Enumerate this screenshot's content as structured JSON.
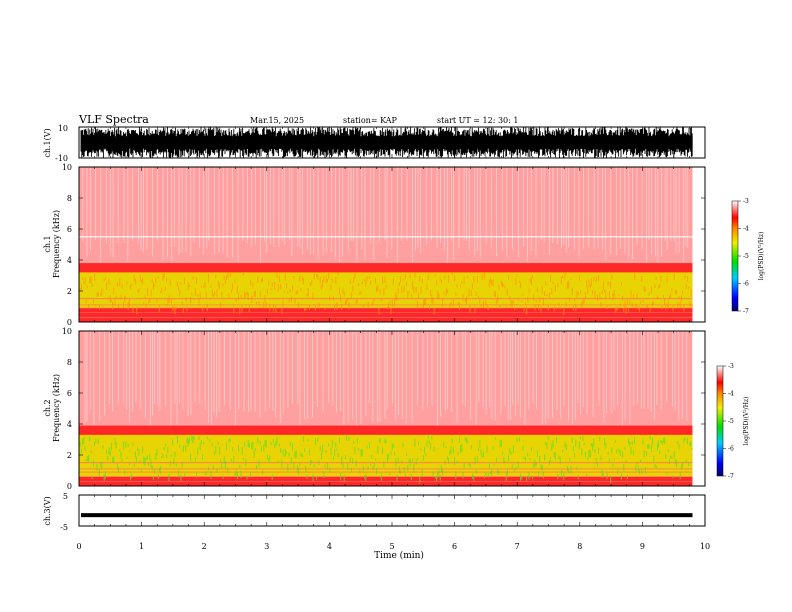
{
  "header": {
    "title": "VLF Spectra",
    "date": "Mar.15, 2025",
    "station": "station= KAP",
    "start": "start  UT =   12: 30: 1"
  },
  "colors": {
    "background": "#ffffff",
    "trace": "#000000",
    "spectrum_high": "#ff0000",
    "spectrum_low": "#ffffff",
    "band_yellow": "#e6e600",
    "band_green": "#66dd22"
  },
  "chart_data": [
    {
      "id": "ch1-waveform",
      "type": "line",
      "ylabel": "ch.1(V)",
      "ylim": [
        -10,
        10
      ],
      "y_ticks": [
        "10",
        "-10"
      ],
      "x_range_min": [
        0,
        9.8
      ],
      "description_series": "noise waveform filling most of the range"
    },
    {
      "id": "ch1-spectrogram",
      "type": "heatmap",
      "ylabel": "ch.1\nFrequency (kHz)",
      "ylim": [
        0,
        10
      ],
      "y_ticks": [
        "0",
        "2",
        "4",
        "6",
        "8",
        "10"
      ],
      "xlim": [
        0,
        10
      ],
      "data_end_min": 9.8,
      "colorbar": {
        "label": "log(PSD)(V²/Hz)",
        "range": [
          -7,
          -3
        ],
        "ticks": [
          "-3",
          "-4",
          "-5",
          "-6",
          "-7"
        ]
      },
      "bands_khz": {
        "strong_low": [
          0.9,
          3.2
        ],
        "red_top": 3.8,
        "white_line": 5.5
      }
    },
    {
      "id": "ch2-spectrogram",
      "type": "heatmap",
      "ylabel": "ch.2\nFrequency (kHz)",
      "ylim": [
        0,
        10
      ],
      "y_ticks": [
        "0",
        "2",
        "4",
        "6",
        "8",
        "10"
      ],
      "xlim": [
        0,
        10
      ],
      "data_end_min": 9.8,
      "colorbar": {
        "label": "log(PSD)(V²/Hz)",
        "range": [
          -7,
          -3
        ],
        "ticks": [
          "-3",
          "-4",
          "-5",
          "-6",
          "-7"
        ]
      },
      "bands_khz": {
        "strong_low": [
          0.6,
          3.3
        ],
        "red_top": 3.9
      }
    },
    {
      "id": "ch3-waveform",
      "type": "line",
      "ylabel": "ch.3(V)",
      "ylim": [
        -5,
        5
      ],
      "y_ticks": [
        "5",
        "-5"
      ],
      "constant_level": -1.5,
      "x_range_min": [
        0,
        9.8
      ]
    }
  ],
  "x_axis": {
    "label": "Time (min)",
    "ticks": [
      "0",
      "1",
      "2",
      "3",
      "4",
      "5",
      "6",
      "7",
      "8",
      "9",
      "10"
    ],
    "range": [
      0,
      10
    ]
  }
}
